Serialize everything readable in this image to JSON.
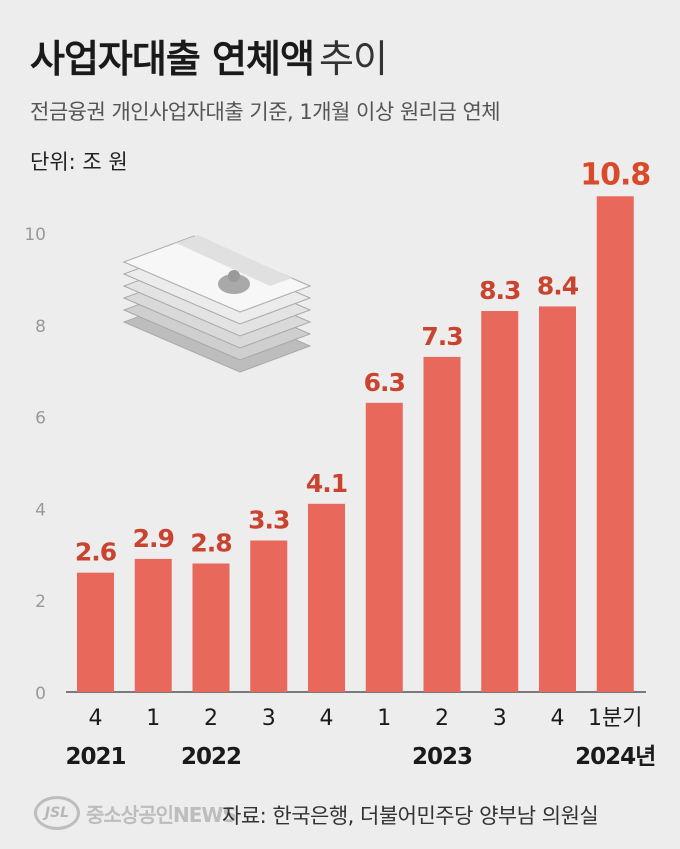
{
  "header": {
    "title_bold": "사업자대출 연체액",
    "title_light": "추이",
    "subtitle": "전금융권 개인사업자대출 기준, 1개월 이상 원리금 연체",
    "unit": "단위: 조 원"
  },
  "footer": {
    "source": "자료: 한국은행, 더불어민주당 양부남 의원실",
    "watermark_logo": "JSL",
    "watermark_text": "중소상공인NEWS"
  },
  "colors": {
    "bar": "#e8685c",
    "value_label": "#c9432f",
    "highlight_label": "#d84a2a"
  },
  "icons": {
    "illustration": "money-stack-icon"
  },
  "chart_data": {
    "type": "bar",
    "categories": [
      "4",
      "1",
      "2",
      "3",
      "4",
      "1",
      "2",
      "3",
      "4",
      "1분기"
    ],
    "values": [
      2.6,
      2.9,
      2.8,
      3.3,
      4.1,
      6.3,
      7.3,
      8.3,
      8.4,
      10.8
    ],
    "value_labels": [
      "2.6",
      "2.9",
      "2.8",
      "3.3",
      "4.1",
      "6.3",
      "7.3",
      "8.3",
      "8.4",
      "10.8"
    ],
    "year_labels": [
      {
        "label": "2021",
        "index": 0
      },
      {
        "label": "2022",
        "index": 2
      },
      {
        "label": "2023",
        "index": 6
      },
      {
        "label": "2024년",
        "index": 9
      }
    ],
    "yticks": [
      0,
      2,
      4,
      6,
      8,
      10
    ],
    "ylim": [
      0,
      11.5
    ],
    "grid": false,
    "title": "사업자대출 연체액 추이",
    "xlabel": "",
    "ylabel": ""
  }
}
